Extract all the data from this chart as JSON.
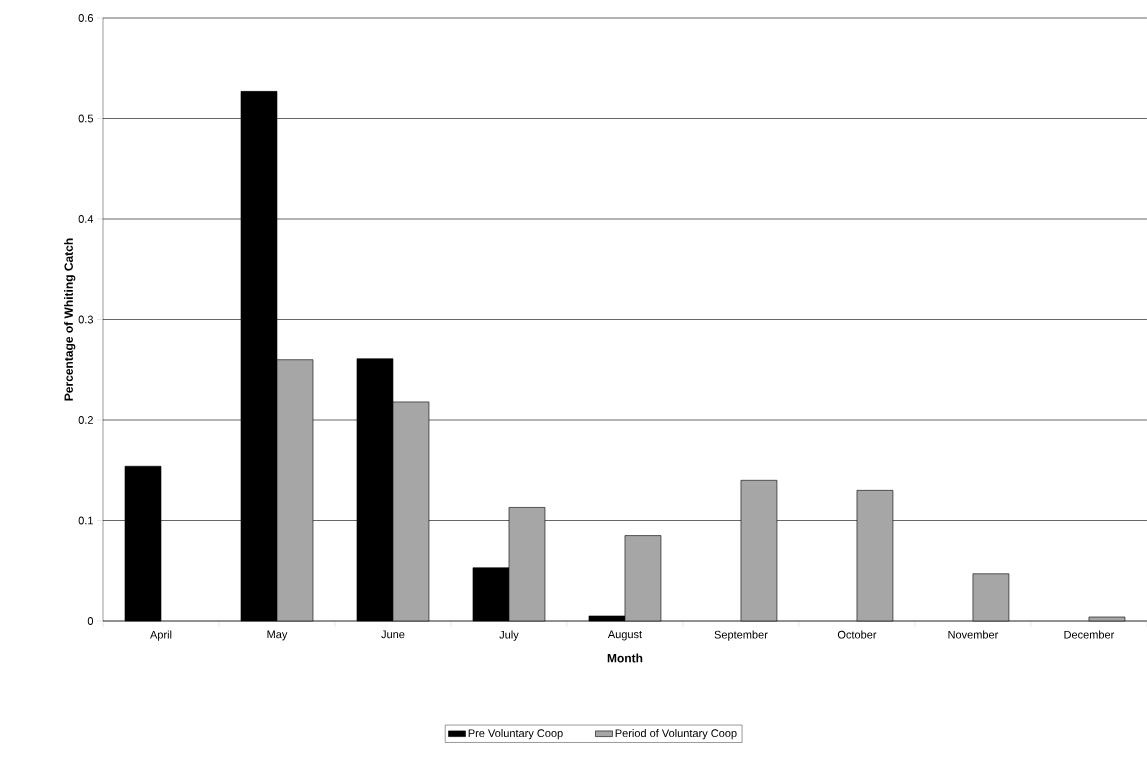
{
  "chart_data": {
    "type": "bar",
    "xlabel": "Month",
    "ylabel": "Percentage of Whiting Catch",
    "categories": [
      "April",
      "May",
      "June",
      "July",
      "August",
      "September",
      "October",
      "November",
      "December"
    ],
    "series": [
      {
        "name": "Pre Voluntary Coop",
        "color": "#000000",
        "values": [
          0.154,
          0.527,
          0.261,
          0.053,
          0.005,
          0,
          0,
          0,
          0
        ]
      },
      {
        "name": "Period of Voluntary Coop",
        "color": "#a6a6a6",
        "values": [
          0,
          0.26,
          0.218,
          0.113,
          0.085,
          0.14,
          0.13,
          0.047,
          0.004
        ]
      }
    ],
    "ylim": [
      0,
      0.6
    ],
    "yticks": [
      0,
      0.1,
      0.2,
      0.3,
      0.4,
      0.5,
      0.6
    ],
    "grid": "y",
    "legend": "bottom"
  }
}
